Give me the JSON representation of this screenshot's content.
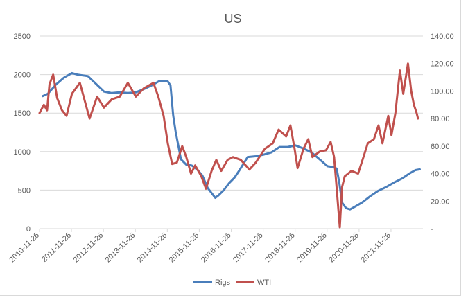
{
  "colors": {
    "rigs": "#4a7ebb",
    "wti": "#c0504d",
    "grid": "#d9d9d9",
    "text": "#595959"
  },
  "chart_data": {
    "type": "line",
    "title": "US",
    "grid": true,
    "legend_position": "bottom",
    "x_tick_labels": [
      "2010-11-26",
      "2011-11-26",
      "2012-11-26",
      "2013-11-26",
      "2014-11-26",
      "2015-11-26",
      "2016-11-26",
      "2017-11-26",
      "2018-11-26",
      "2019-11-26",
      "2020-11-26",
      "2021-11-26"
    ],
    "y_left": {
      "min": 0,
      "max": 2500,
      "ticks": [
        "0",
        "500",
        "1000",
        "1500",
        "2000",
        "2500"
      ]
    },
    "y_right": {
      "min": 0,
      "max": 140,
      "ticks": [
        "-",
        "20.00",
        "40.00",
        "60.00",
        "80.00",
        "100.00",
        "120.00",
        "140.00"
      ]
    },
    "series": [
      {
        "name": "Rigs",
        "axis": "left",
        "x": [
          "2011-01-01",
          "2011-03-01",
          "2011-06-01",
          "2011-09-01",
          "2011-12-01",
          "2012-02-01",
          "2012-06-01",
          "2012-09-01",
          "2012-12-01",
          "2013-03-01",
          "2013-06-01",
          "2013-09-01",
          "2013-12-01",
          "2014-03-01",
          "2014-06-01",
          "2014-09-01",
          "2014-11-26",
          "2015-01-01",
          "2015-02-01",
          "2015-03-01",
          "2015-05-01",
          "2015-07-01",
          "2015-09-01",
          "2015-11-01",
          "2016-01-01",
          "2016-03-01",
          "2016-05-27",
          "2016-07-01",
          "2016-09-01",
          "2016-11-01",
          "2017-01-01",
          "2017-03-01",
          "2017-06-01",
          "2017-09-01",
          "2017-12-01",
          "2018-03-01",
          "2018-06-01",
          "2018-09-01",
          "2018-12-01",
          "2019-03-01",
          "2019-06-01",
          "2019-09-01",
          "2019-12-01",
          "2020-02-01",
          "2020-03-15",
          "2020-04-15",
          "2020-05-15",
          "2020-07-01",
          "2020-08-15",
          "2020-10-01",
          "2021-01-01",
          "2021-04-01",
          "2021-07-01",
          "2021-10-01",
          "2022-01-01",
          "2022-04-01",
          "2022-07-01",
          "2022-09-01",
          "2022-10-21"
        ],
        "values": [
          1720,
          1750,
          1870,
          1960,
          2020,
          2000,
          1980,
          1880,
          1780,
          1760,
          1770,
          1760,
          1770,
          1810,
          1860,
          1920,
          1920,
          1860,
          1470,
          1260,
          900,
          830,
          820,
          770,
          690,
          530,
          400,
          430,
          500,
          590,
          660,
          760,
          930,
          940,
          960,
          990,
          1060,
          1060,
          1080,
          1040,
          990,
          900,
          810,
          800,
          780,
          590,
          340,
          265,
          250,
          280,
          340,
          420,
          490,
          540,
          600,
          650,
          720,
          760,
          770
        ]
      },
      {
        "name": "WTI",
        "axis": "right",
        "x": [
          "2010-11-26",
          "2011-01-15",
          "2011-02-20",
          "2011-03-20",
          "2011-05-01",
          "2011-06-15",
          "2011-08-10",
          "2011-10-01",
          "2011-12-01",
          "2012-03-01",
          "2012-06-20",
          "2012-09-15",
          "2012-12-01",
          "2013-03-01",
          "2013-06-01",
          "2013-09-01",
          "2013-12-01",
          "2014-03-01",
          "2014-06-20",
          "2014-08-15",
          "2014-10-15",
          "2014-12-01",
          "2015-01-20",
          "2015-03-15",
          "2015-05-15",
          "2015-07-01",
          "2015-08-24",
          "2015-10-10",
          "2015-12-20",
          "2016-02-11",
          "2016-04-15",
          "2016-06-08",
          "2016-08-03",
          "2016-10-15",
          "2016-12-15",
          "2017-03-15",
          "2017-06-21",
          "2017-09-01",
          "2017-12-15",
          "2018-03-15",
          "2018-05-22",
          "2018-08-15",
          "2018-10-03",
          "2018-11-20",
          "2018-12-24",
          "2019-03-01",
          "2019-04-25",
          "2019-06-12",
          "2019-09-01",
          "2019-11-15",
          "2020-01-06",
          "2020-02-15",
          "2020-03-10",
          "2020-04-20",
          "2020-05-15",
          "2020-06-15",
          "2020-09-01",
          "2020-11-15",
          "2021-01-15",
          "2021-03-05",
          "2021-05-15",
          "2021-07-06",
          "2021-08-20",
          "2021-10-26",
          "2021-12-01",
          "2022-01-15",
          "2022-03-08",
          "2022-04-15",
          "2022-06-08",
          "2022-07-15",
          "2022-08-15",
          "2022-09-15",
          "2022-10-01"
        ],
        "values": [
          84,
          90,
          86,
          105,
          112,
          95,
          86,
          82,
          98,
          106,
          80,
          96,
          88,
          94,
          96,
          106,
          96,
          102,
          106,
          96,
          82,
          62,
          47,
          48,
          60,
          52,
          40,
          46,
          38,
          29,
          42,
          50,
          42,
          50,
          52,
          50,
          43,
          48,
          58,
          62,
          72,
          67,
          75,
          58,
          44,
          58,
          65,
          52,
          56,
          57,
          63,
          52,
          33,
          1,
          30,
          38,
          42,
          40,
          52,
          62,
          65,
          75,
          62,
          82,
          68,
          84,
          115,
          98,
          120,
          100,
          90,
          84,
          80
        ]
      }
    ]
  }
}
